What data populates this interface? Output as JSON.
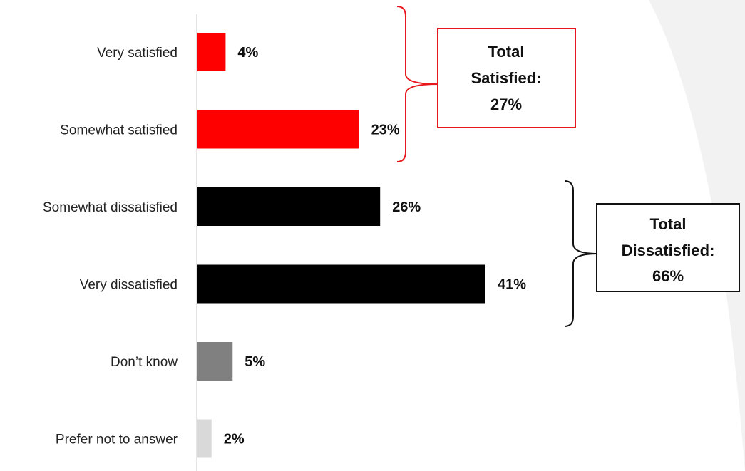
{
  "chart_data": {
    "type": "bar",
    "orientation": "horizontal",
    "categories": [
      "Very satisfied",
      "Somewhat satisfied",
      "Somewhat dissatisfied",
      "Very dissatisfied",
      "Don’t know",
      "Prefer not to answer"
    ],
    "values": [
      4,
      23,
      26,
      41,
      5,
      2
    ],
    "value_labels": [
      "4%",
      "23%",
      "26%",
      "41%",
      "5%",
      "2%"
    ],
    "colors": [
      "#ff0000",
      "#ff0000",
      "#000000",
      "#000000",
      "#808080",
      "#d9d9d9"
    ],
    "xlim": [
      0,
      41
    ],
    "grid": false,
    "annotations": [
      {
        "lines": [
          "Total",
          "Satisfied:",
          "27%"
        ],
        "border_color": "#e8171d",
        "brace_color": "#e8171d",
        "spans_categories": [
          "Very satisfied",
          "Somewhat satisfied"
        ]
      },
      {
        "lines": [
          "Total",
          "Dissatisfied:",
          "66%"
        ],
        "border_color": "#111111",
        "brace_color": "#111111",
        "spans_categories": [
          "Somewhat dissatisfied",
          "Very dissatisfied"
        ]
      }
    ]
  },
  "theme": {
    "background_swoosh": "#f2f2f2",
    "axis_color": "#c8c8c8"
  }
}
